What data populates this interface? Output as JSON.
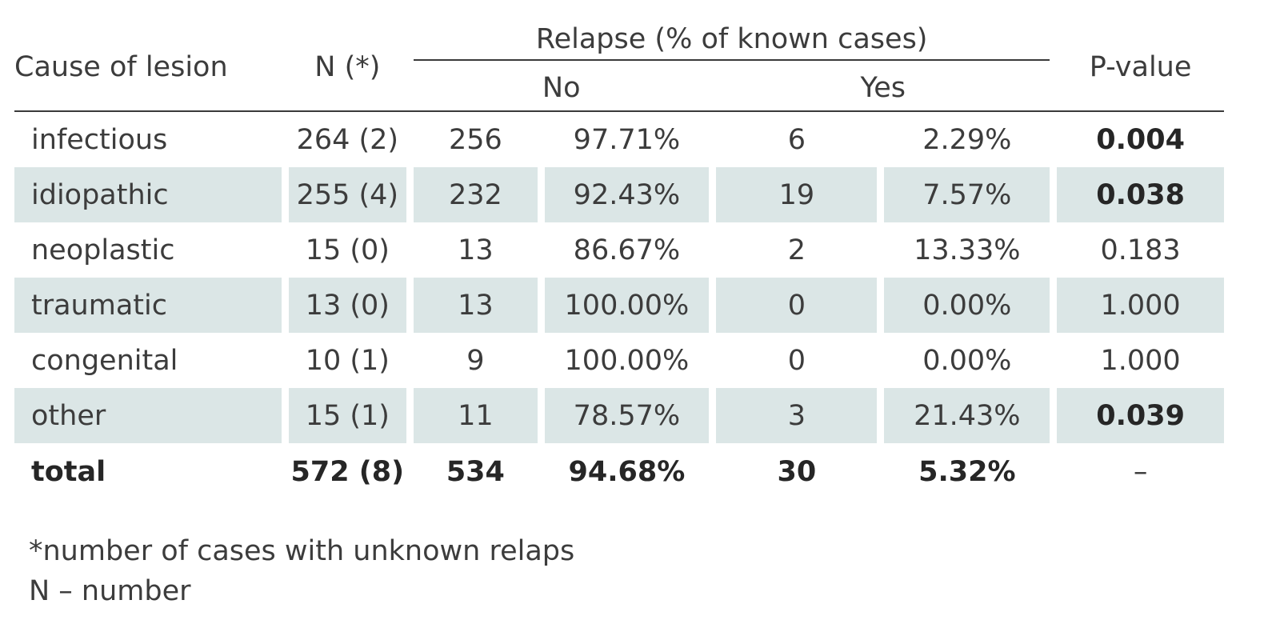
{
  "header": {
    "cause": "Cause of lesion",
    "n": "N (*)",
    "relapse_group": "Relapse (% of known cases)",
    "no": "No",
    "yes": "Yes",
    "p_value": "P-value"
  },
  "rows": [
    {
      "cause": "infectious",
      "n": "264 (2)",
      "no_count": "256",
      "no_pct": "97.71%",
      "yes_count": "6",
      "yes_pct": "2.29%",
      "p": "0.004",
      "p_bold": true
    },
    {
      "cause": "idiopathic",
      "n": "255 (4)",
      "no_count": "232",
      "no_pct": "92.43%",
      "yes_count": "19",
      "yes_pct": "7.57%",
      "p": "0.038",
      "p_bold": true
    },
    {
      "cause": "neoplastic",
      "n": "15 (0)",
      "no_count": "13",
      "no_pct": "86.67%",
      "yes_count": "2",
      "yes_pct": "13.33%",
      "p": "0.183",
      "p_bold": false
    },
    {
      "cause": "traumatic",
      "n": "13 (0)",
      "no_count": "13",
      "no_pct": "100.00%",
      "yes_count": "0",
      "yes_pct": "0.00%",
      "p": "1.000",
      "p_bold": false
    },
    {
      "cause": "congenital",
      "n": "10 (1)",
      "no_count": "9",
      "no_pct": "100.00%",
      "yes_count": "0",
      "yes_pct": "0.00%",
      "p": "1.000",
      "p_bold": false
    },
    {
      "cause": "other",
      "n": "15 (1)",
      "no_count": "11",
      "no_pct": "78.57%",
      "yes_count": "3",
      "yes_pct": "21.43%",
      "p": "0.039",
      "p_bold": true
    }
  ],
  "total": {
    "cause": "total",
    "n": "572 (8)",
    "no_count": "534",
    "no_pct": "94.68%",
    "yes_count": "30",
    "yes_pct": "5.32%",
    "p": "–"
  },
  "footnotes": {
    "asterisk": "*number of cases with unknown relaps",
    "n_def": "N – number"
  },
  "colors": {
    "shade": "#dbe6e6",
    "rule": "#3a3a3a",
    "text": "#3c3c3c"
  }
}
